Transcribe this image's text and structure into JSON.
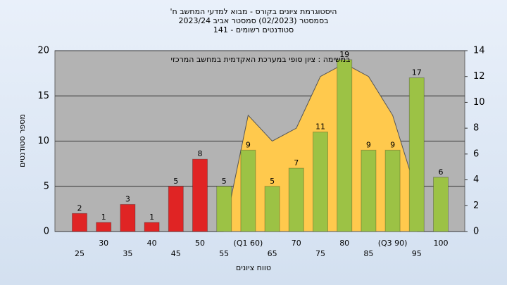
{
  "chart_data": {
    "type": "bar",
    "title": "היסטוגרמת ציונים בקורס - מבוא למדעי המחשב ח'",
    "subtitle": "בסמסטר (02/2023) סמסטר אביב 2023/24",
    "subtitle2": "סטודנטים רשומים - 141",
    "annotation": "במשימה : ציון סופי במערכת האקדמית במחשב המרכזי",
    "x_label": "טווח ציונים",
    "y_label": "מספר סטודנטים",
    "categories": [
      "25",
      "30",
      "35",
      "40",
      "45",
      "50",
      "55",
      "(Q1 60)",
      "65",
      "70",
      "75",
      "80",
      "85",
      "(Q3 90)",
      "95",
      "100"
    ],
    "series": [
      {
        "values": [
          2,
          1,
          3,
          1,
          5,
          8,
          5,
          9,
          5,
          7,
          11,
          19,
          9,
          9,
          17,
          6
        ],
        "colors": [
          "#e02424",
          "#e02424",
          "#e02424",
          "#e02424",
          "#e02424",
          "#e02424",
          "#9cc245",
          "#9cc245",
          "#9cc245",
          "#9cc245",
          "#9cc245",
          "#9cc245",
          "#9cc245",
          "#9cc245",
          "#9cc245",
          "#9cc245"
        ]
      },
      {
        "type": "area",
        "axis": "y2",
        "color": "#ffc94d",
        "values": [
          null,
          null,
          null,
          null,
          null,
          null,
          0,
          9,
          7,
          8,
          12,
          13,
          12,
          9,
          3,
          null
        ]
      }
    ],
    "ylim": [
      0,
      20
    ],
    "yticks": [
      0,
      5,
      10,
      15,
      20
    ],
    "y2lim": [
      0,
      14
    ],
    "y2ticks": [
      0,
      2,
      4,
      6,
      8,
      10,
      12,
      14
    ],
    "grid": true
  }
}
